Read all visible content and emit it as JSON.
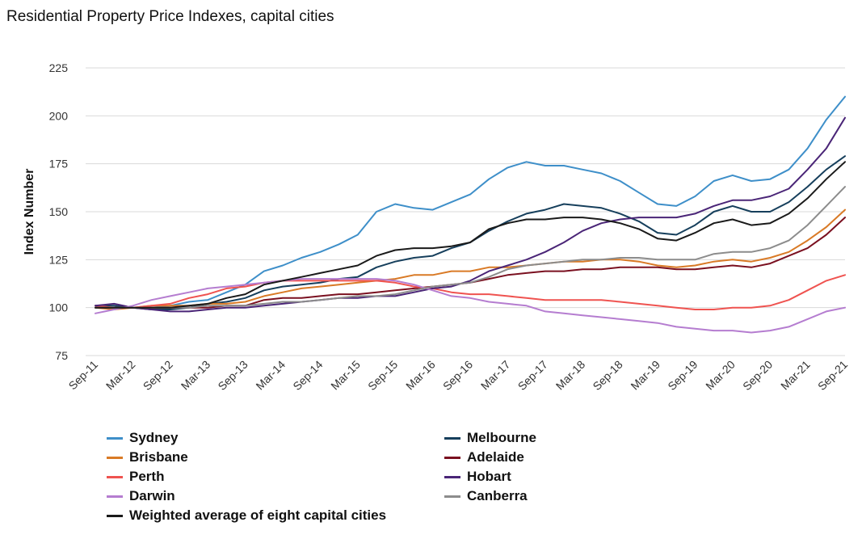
{
  "chart_data": {
    "type": "line",
    "title": "Residential Property Price Indexes, capital cities",
    "ylabel": "Index Number",
    "xlabel": "",
    "ylim": [
      75,
      225
    ],
    "yticks": [
      75,
      100,
      125,
      150,
      175,
      200,
      225
    ],
    "grid": true,
    "legend_position": "bottom",
    "x": [
      "Sep-11",
      "Dec-11",
      "Mar-12",
      "Jun-12",
      "Sep-12",
      "Dec-12",
      "Mar-13",
      "Jun-13",
      "Sep-13",
      "Dec-13",
      "Mar-14",
      "Jun-14",
      "Sep-14",
      "Dec-14",
      "Mar-15",
      "Jun-15",
      "Sep-15",
      "Dec-15",
      "Mar-16",
      "Jun-16",
      "Sep-16",
      "Dec-16",
      "Mar-17",
      "Jun-17",
      "Sep-17",
      "Dec-17",
      "Mar-18",
      "Jun-18",
      "Sep-18",
      "Dec-18",
      "Mar-19",
      "Jun-19",
      "Sep-19",
      "Dec-19",
      "Mar-20",
      "Jun-20",
      "Sep-20",
      "Dec-20",
      "Mar-21",
      "Jun-21",
      "Sep-21"
    ],
    "xtick_labels": [
      "Sep-11",
      "Mar-12",
      "Sep-12",
      "Mar-13",
      "Sep-13",
      "Mar-14",
      "Sep-14",
      "Mar-15",
      "Sep-15",
      "Mar-16",
      "Sep-16",
      "Mar-17",
      "Sep-17",
      "Mar-18",
      "Sep-18",
      "Mar-19",
      "Sep-19",
      "Mar-20",
      "Sep-20",
      "Mar-21",
      "Sep-21"
    ],
    "series": [
      {
        "name": "Sydney",
        "color": "#3e8fc9",
        "values": [
          100,
          100,
          100,
          100,
          101,
          103,
          104,
          108,
          112,
          119,
          122,
          126,
          129,
          133,
          138,
          150,
          154,
          152,
          151,
          155,
          159,
          167,
          173,
          176,
          174,
          174,
          172,
          170,
          166,
          160,
          154,
          153,
          158,
          166,
          169,
          166,
          167,
          172,
          183,
          198,
          210
        ]
      },
      {
        "name": "Melbourne",
        "color": "#163f5c",
        "values": [
          101,
          101,
          100,
          99,
          99,
          100,
          102,
          103,
          105,
          109,
          111,
          112,
          113,
          115,
          116,
          121,
          124,
          126,
          127,
          131,
          134,
          140,
          145,
          149,
          151,
          154,
          153,
          152,
          149,
          145,
          139,
          138,
          143,
          150,
          153,
          150,
          150,
          155,
          163,
          172,
          179
        ]
      },
      {
        "name": "Brisbane",
        "color": "#d97a26",
        "values": [
          100,
          99,
          100,
          101,
          101,
          101,
          102,
          102,
          103,
          106,
          108,
          110,
          111,
          112,
          113,
          114,
          115,
          117,
          117,
          119,
          119,
          121,
          121,
          122,
          123,
          124,
          124,
          125,
          125,
          124,
          122,
          121,
          122,
          124,
          125,
          124,
          126,
          129,
          135,
          142,
          151
        ]
      },
      {
        "name": "Adelaide",
        "color": "#7a1020",
        "values": [
          100,
          100,
          100,
          100,
          100,
          100,
          100,
          101,
          101,
          104,
          105,
          105,
          106,
          107,
          107,
          108,
          109,
          110,
          111,
          112,
          113,
          115,
          117,
          118,
          119,
          119,
          120,
          120,
          121,
          121,
          121,
          120,
          120,
          121,
          122,
          121,
          123,
          127,
          131,
          138,
          147
        ]
      },
      {
        "name": "Perth",
        "color": "#ef5350",
        "values": [
          101,
          100,
          100,
          101,
          102,
          105,
          107,
          110,
          111,
          113,
          114,
          114,
          114,
          114,
          114,
          114,
          113,
          111,
          110,
          108,
          107,
          107,
          106,
          105,
          104,
          104,
          104,
          104,
          103,
          102,
          101,
          100,
          99,
          99,
          100,
          100,
          101,
          104,
          109,
          114,
          117
        ]
      },
      {
        "name": "Hobart",
        "color": "#4a2577",
        "values": [
          101,
          102,
          100,
          99,
          98,
          98,
          99,
          100,
          100,
          101,
          102,
          103,
          104,
          105,
          105,
          106,
          106,
          108,
          110,
          111,
          114,
          119,
          122,
          125,
          129,
          134,
          140,
          144,
          146,
          147,
          147,
          147,
          149,
          153,
          156,
          156,
          158,
          162,
          172,
          183,
          199
        ]
      },
      {
        "name": "Darwin",
        "color": "#b57dd0",
        "values": [
          97,
          99,
          101,
          104,
          106,
          108,
          110,
          111,
          112,
          113,
          114,
          115,
          115,
          115,
          115,
          115,
          114,
          112,
          109,
          106,
          105,
          103,
          102,
          101,
          98,
          97,
          96,
          95,
          94,
          93,
          92,
          90,
          89,
          88,
          88,
          87,
          88,
          90,
          94,
          98,
          100
        ]
      },
      {
        "name": "Canberra",
        "color": "#8c8c8c",
        "values": [
          100,
          100,
          100,
          100,
          100,
          100,
          101,
          101,
          101,
          102,
          103,
          103,
          104,
          105,
          106,
          106,
          107,
          109,
          111,
          112,
          113,
          116,
          120,
          122,
          123,
          124,
          125,
          125,
          126,
          126,
          125,
          125,
          125,
          128,
          129,
          129,
          131,
          135,
          143,
          153,
          163
        ]
      },
      {
        "name": "Weighted average of eight capital cities",
        "color": "#1a1a1a",
        "values": [
          100,
          100,
          100,
          100,
          100,
          101,
          102,
          105,
          107,
          112,
          114,
          116,
          118,
          120,
          122,
          127,
          130,
          131,
          131,
          132,
          134,
          141,
          144,
          146,
          146,
          147,
          147,
          146,
          144,
          141,
          136,
          135,
          139,
          144,
          146,
          143,
          144,
          149,
          157,
          167,
          176
        ]
      }
    ]
  }
}
